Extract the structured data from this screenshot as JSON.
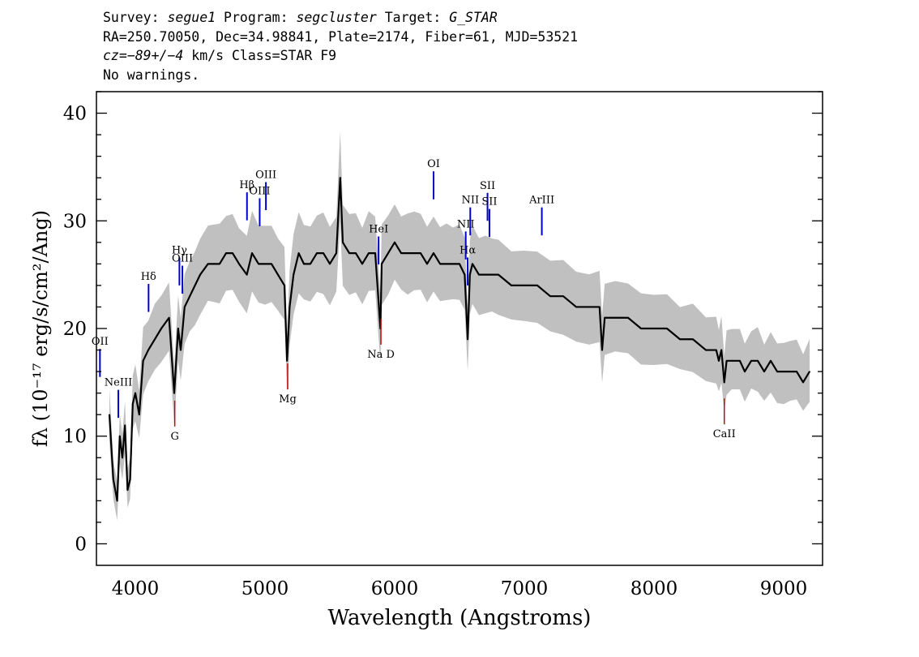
{
  "header": {
    "line1": {
      "survey_label": "Survey: ",
      "survey": "segue1",
      "program_label": " Program: ",
      "program": "segcluster",
      "target_label": " Target: ",
      "target": "G_STAR"
    },
    "line2": "RA=250.70050, Dec=34.98841, Plate=2174, Fiber=61, MJD=53521",
    "line3": {
      "cz_label": "cz=",
      "cz": "−89+/−4",
      "cz_rest": " km/s Class=STAR F9"
    },
    "line4": "No warnings."
  },
  "chart_data": {
    "type": "line",
    "xlabel": "Wavelength (Angstroms)",
    "ylabel": "fλ (10⁻¹⁷ erg/s/cm²/Ang)",
    "xlim": [
      3700,
      9300
    ],
    "ylim": [
      -2,
      42
    ],
    "xticks": [
      4000,
      5000,
      6000,
      7000,
      8000,
      9000
    ],
    "yticks": [
      0,
      10,
      20,
      30,
      40
    ],
    "grid": false,
    "colors": {
      "flux": "#000000",
      "error_band": "#c0c0c0",
      "emission_lines": "#0000cc",
      "absorption_lines": "#cc0000"
    },
    "series": [
      {
        "role": "flux",
        "x": [
          3800,
          3830,
          3860,
          3880,
          3900,
          3920,
          3940,
          3960,
          3980,
          4000,
          4030,
          4060,
          4100,
          4150,
          4200,
          4260,
          4300,
          4330,
          4350,
          4380,
          4420,
          4460,
          4500,
          4560,
          4600,
          4650,
          4700,
          4750,
          4800,
          4860,
          4900,
          4950,
          5000,
          5050,
          5100,
          5150,
          5170,
          5190,
          5220,
          5260,
          5300,
          5350,
          5400,
          5450,
          5500,
          5550,
          5580,
          5600,
          5650,
          5700,
          5750,
          5800,
          5850,
          5890,
          5900,
          5950,
          6000,
          6050,
          6100,
          6150,
          6200,
          6250,
          6300,
          6350,
          6400,
          6450,
          6500,
          6540,
          6563,
          6580,
          6600,
          6650,
          6700,
          6750,
          6800,
          6900,
          7000,
          7100,
          7200,
          7300,
          7400,
          7500,
          7580,
          7600,
          7620,
          7700,
          7800,
          7900,
          8000,
          8100,
          8200,
          8300,
          8400,
          8480,
          8500,
          8520,
          8542,
          8560,
          8600,
          8662,
          8700,
          8750,
          8800,
          8850,
          8900,
          8950,
          9000,
          9050,
          9100,
          9150,
          9200
        ],
        "y": [
          12,
          6,
          4,
          10,
          8,
          11,
          5,
          6,
          13,
          14,
          12,
          17,
          18,
          19,
          20,
          21,
          14,
          20,
          18,
          22,
          23,
          24,
          25,
          26,
          26,
          26,
          27,
          27,
          26,
          25,
          27,
          26,
          26,
          26,
          25,
          24,
          17,
          22,
          25,
          27,
          26,
          26,
          27,
          27,
          26,
          27,
          34,
          28,
          27,
          27,
          26,
          27,
          27,
          20,
          26,
          27,
          28,
          27,
          27,
          27,
          27,
          26,
          27,
          26,
          26,
          26,
          26,
          25,
          19,
          25,
          26,
          25,
          25,
          25,
          25,
          24,
          24,
          24,
          23,
          23,
          22,
          22,
          22,
          18,
          21,
          21,
          21,
          20,
          20,
          20,
          19,
          19,
          18,
          18,
          17,
          18,
          15,
          17,
          17,
          17,
          16,
          17,
          17,
          16,
          17,
          16,
          16,
          16,
          16,
          15,
          16
        ]
      }
    ],
    "annotations": {
      "emission": [
        {
          "label": "OII",
          "x": 3727
        },
        {
          "label": "NeIII",
          "x": 3869
        },
        {
          "label": "Hδ",
          "x": 4102
        },
        {
          "label": "Hγ",
          "x": 4340
        },
        {
          "label": "OIII",
          "x": 4363
        },
        {
          "label": "Hβ",
          "x": 4861
        },
        {
          "label": "OIII",
          "x": 4959
        },
        {
          "label": "OIII",
          "x": 5007
        },
        {
          "label": "HeI",
          "x": 5876
        },
        {
          "label": "OI",
          "x": 6300
        },
        {
          "label": "NII",
          "x": 6548
        },
        {
          "label": "Hα",
          "x": 6563
        },
        {
          "label": "NII",
          "x": 6583
        },
        {
          "label": "SII",
          "x": 6716
        },
        {
          "label": "SII",
          "x": 6731
        },
        {
          "label": "ArIII",
          "x": 7135
        }
      ],
      "absorption": [
        {
          "label": "G",
          "x": 4304
        },
        {
          "label": "Mg",
          "x": 5175
        },
        {
          "label": "Na D",
          "x": 5894
        },
        {
          "label": "CaII",
          "x": 8542
        }
      ]
    }
  }
}
